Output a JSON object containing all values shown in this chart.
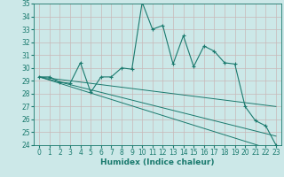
{
  "xlabel": "Humidex (Indice chaleur)",
  "x": [
    0,
    1,
    2,
    3,
    4,
    5,
    6,
    7,
    8,
    9,
    10,
    11,
    12,
    13,
    14,
    15,
    16,
    17,
    18,
    19,
    20,
    21,
    22,
    23
  ],
  "line1": [
    29.3,
    29.3,
    28.9,
    28.8,
    30.4,
    28.1,
    29.3,
    29.3,
    30.0,
    29.9,
    35.1,
    33.0,
    33.3,
    30.3,
    32.5,
    30.1,
    31.7,
    31.3,
    30.4,
    30.3,
    27.0,
    25.9,
    25.5,
    24.0
  ],
  "line2": [
    29.3,
    29.2,
    29.1,
    29.0,
    28.9,
    28.8,
    28.7,
    28.6,
    28.5,
    28.4,
    28.3,
    28.2,
    28.1,
    28.0,
    27.9,
    27.8,
    27.7,
    27.6,
    27.5,
    27.4,
    27.3,
    27.2,
    27.1,
    27.0
  ],
  "line3": [
    29.3,
    29.1,
    28.9,
    28.7,
    28.5,
    28.3,
    28.1,
    27.9,
    27.7,
    27.5,
    27.3,
    27.1,
    26.9,
    26.7,
    26.5,
    26.3,
    26.1,
    25.9,
    25.7,
    25.5,
    25.3,
    25.1,
    24.9,
    24.7
  ],
  "line4": [
    29.3,
    29.05,
    28.8,
    28.55,
    28.3,
    28.05,
    27.8,
    27.55,
    27.3,
    27.05,
    26.8,
    26.55,
    26.3,
    26.05,
    25.8,
    25.55,
    25.3,
    25.05,
    24.8,
    24.55,
    24.3,
    24.05,
    23.8,
    23.55
  ],
  "line_color": "#1a7a6e",
  "bg_color": "#cce8e8",
  "grid_color": "#b0d0d0",
  "ylim": [
    24,
    35
  ],
  "xlim": [
    -0.5,
    23.5
  ],
  "yticks": [
    24,
    25,
    26,
    27,
    28,
    29,
    30,
    31,
    32,
    33,
    34,
    35
  ],
  "xticks": [
    0,
    1,
    2,
    3,
    4,
    5,
    6,
    7,
    8,
    9,
    10,
    11,
    12,
    13,
    14,
    15,
    16,
    17,
    18,
    19,
    20,
    21,
    22,
    23
  ],
  "tick_fontsize": 5.5,
  "label_fontsize": 6.5
}
